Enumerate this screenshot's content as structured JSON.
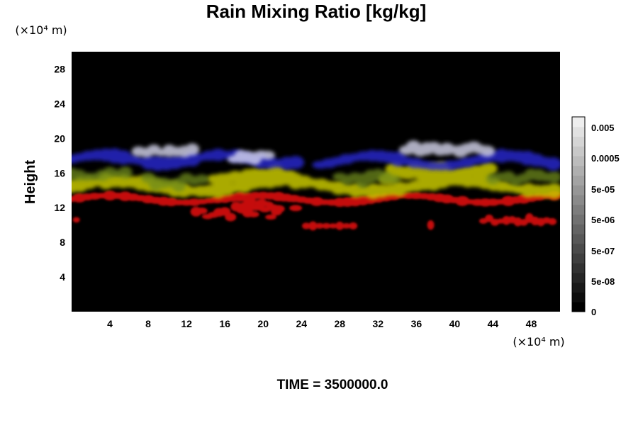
{
  "chart_data": {
    "type": "heatmap",
    "title": "Rain Mixing Ratio [kg/kg]",
    "ylabel": "Height",
    "x_unit": "(×10⁴ m)",
    "y_unit": "(×10⁴ m)",
    "x_ticks": [
      "4",
      "8",
      "12",
      "16",
      "20",
      "24",
      "28",
      "32",
      "36",
      "40",
      "44",
      "48"
    ],
    "y_ticks": [
      "4",
      "8",
      "12",
      "16",
      "20",
      "24",
      "28"
    ],
    "xlim": [
      0,
      51
    ],
    "ylim": [
      0,
      30
    ],
    "colorbar": {
      "labels": [
        "0.005",
        "0.0005",
        "5e-05",
        "5e-06",
        "5e-07",
        "5e-08",
        "0"
      ],
      "colors": [
        "#000000",
        "#ffffff"
      ]
    },
    "background": "#000000",
    "layers": [
      {
        "name": "red",
        "color": "#d01010",
        "y_range": [
          9.5,
          14
        ]
      },
      {
        "name": "yellow",
        "color": "#c8c800",
        "y_range": [
          13,
          17
        ]
      },
      {
        "name": "green",
        "color": "#6e8a1a",
        "y_range": [
          13.5,
          16.5
        ]
      },
      {
        "name": "blue",
        "color": "#2828c8",
        "y_range": [
          16,
          19
        ]
      },
      {
        "name": "white",
        "color": "#d8d8f0",
        "y_range": [
          16.5,
          19.5
        ]
      }
    ]
  },
  "footer": {
    "time_label": "TIME = 3500000.0"
  }
}
